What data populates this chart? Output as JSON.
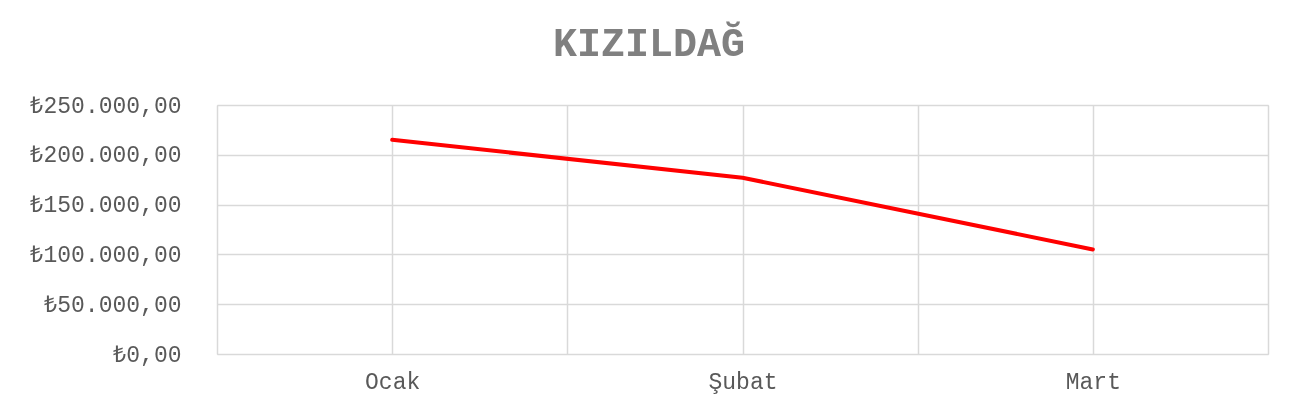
{
  "chart_data": {
    "type": "line",
    "title": "KIZILDAĞ",
    "categories": [
      "Ocak",
      "Şubat",
      "Mart"
    ],
    "series": [
      {
        "color": "#ff0000",
        "values": [
          215000,
          177000,
          105000
        ]
      }
    ],
    "ylim": [
      0,
      250000
    ],
    "yticks": [
      {
        "value": 0,
        "label": "₺0,00"
      },
      {
        "value": 50000,
        "label": "₺50.000,00"
      },
      {
        "value": 100000,
        "label": "₺100.000,00"
      },
      {
        "value": 150000,
        "label": "₺150.000,00"
      },
      {
        "value": 200000,
        "label": "₺200.000,00"
      },
      {
        "value": 250000,
        "label": "₺250.000,00"
      }
    ],
    "grid": true
  }
}
